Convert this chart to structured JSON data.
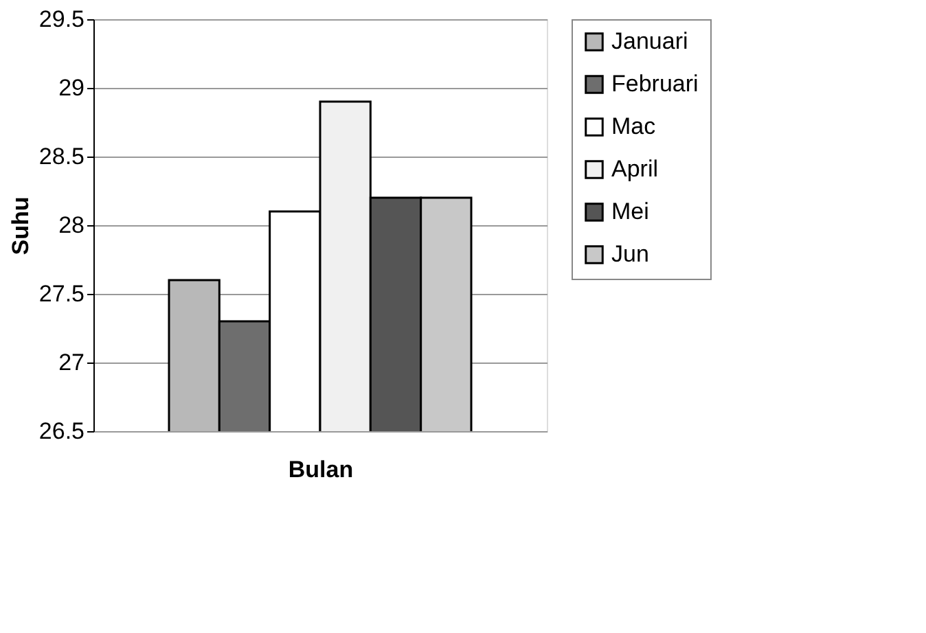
{
  "chart_data": {
    "type": "bar",
    "xlabel": "Bulan",
    "ylabel": "Suhu",
    "categories": [
      null
    ],
    "series": [
      {
        "name": "Januari",
        "color": "#b8b8b8",
        "values": [
          27.6
        ]
      },
      {
        "name": "Februari",
        "color": "#6e6e6e",
        "values": [
          27.3
        ]
      },
      {
        "name": "Mac",
        "color": "#ffffff",
        "values": [
          28.1
        ]
      },
      {
        "name": "April",
        "color": "#f0f0f0",
        "values": [
          28.9
        ]
      },
      {
        "name": "Mei",
        "color": "#555555",
        "values": [
          28.2
        ]
      },
      {
        "name": "Jun",
        "color": "#c8c8c8",
        "values": [
          28.2
        ]
      }
    ],
    "ylim": [
      26.5,
      29.5
    ],
    "yticks": [
      26.5,
      27,
      27.5,
      28,
      28.5,
      29,
      29.5
    ],
    "grid": "y",
    "legend": "right"
  }
}
